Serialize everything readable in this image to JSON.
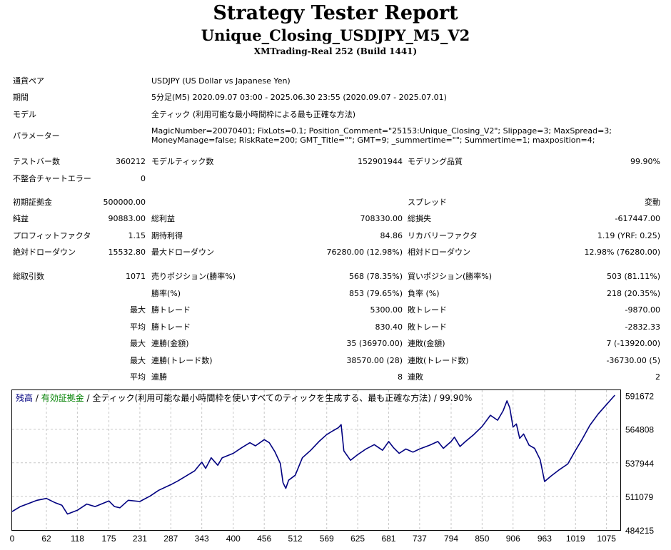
{
  "header": {
    "title": "Strategy Tester Report",
    "ea_name": "Unique_Closing_USDJPY_M5_V2",
    "server": "XMTrading-Real 252 (Build 1441)"
  },
  "info": {
    "symbol_label": "通貨ペア",
    "symbol_value": "USDJPY (US Dollar vs Japanese Yen)",
    "period_label": "期間",
    "period_value": "5分足(M5) 2020.09.07 03:00 - 2025.06.30 23:55 (2020.09.07 - 2025.07.01)",
    "model_label": "モデル",
    "model_value": "全ティック (利用可能な最小時間枠による最も正確な方法)",
    "params_label": "パラメーター",
    "params_line1": "MagicNumber=20070401; FixLots=0.1; Position_Comment=\"25153:Unique_Closing_V2\"; Slippage=3; MaxSpread=3;",
    "params_line2": "MoneyManage=false; RiskRate=200; GMT_Title=\"\"; GMT=9; _summertime=\"\"; Summertime=1; maxposition=4;"
  },
  "stats": {
    "bars_label": "テストバー数",
    "bars_value": "360212",
    "ticks_label": "モデルティック数",
    "ticks_value": "152901944",
    "quality_label": "モデリング品質",
    "quality_value": "99.90%",
    "mismatch_label": "不整合チャートエラー",
    "mismatch_value": "0",
    "deposit_label": "初期証拠金",
    "deposit_value": "500000.00",
    "spread_label": "スプレッド",
    "spread_value": "変動",
    "net_label": "純益",
    "net_value": "90883.00",
    "gross_profit_label": "総利益",
    "gross_profit_value": "708330.00",
    "gross_loss_label": "総損失",
    "gross_loss_value": "-617447.00",
    "pf_label": "プロフィットファクタ",
    "pf_value": "1.15",
    "payoff_label": "期待利得",
    "payoff_value": "84.86",
    "rf_label": "リカバリーファクタ",
    "rf_value": "1.19 (YRF: 0.25)",
    "abs_dd_label": "絶対ドローダウン",
    "abs_dd_value": "15532.80",
    "max_dd_label": "最大ドローダウン",
    "max_dd_value": "76280.00 (12.98%)",
    "rel_dd_label": "相対ドローダウン",
    "rel_dd_value": "12.98% (76280.00)",
    "total_label": "総取引数",
    "total_value": "1071",
    "short_label": "売りポジション(勝率%)",
    "short_value": "568 (78.35%)",
    "long_label": "買いポジション(勝率%)",
    "long_value": "503 (81.11%)",
    "win_label": "勝率(%)",
    "win_value": "853 (79.65%)",
    "loss_label": "負率 (%)",
    "loss_value": "218 (20.35%)",
    "largest_label": "最大",
    "largest_win_label": "勝トレード",
    "largest_win_value": "5300.00",
    "largest_loss_label": "敗トレード",
    "largest_loss_value": "-9870.00",
    "avg_label": "平均",
    "avg_win_label": "勝トレード",
    "avg_win_value": "830.40",
    "avg_loss_label": "敗トレード",
    "avg_loss_value": "-2832.33",
    "max1_label": "最大",
    "cons_wins_label": "連勝(金額)",
    "cons_wins_value": "35 (36970.00)",
    "cons_losses_label": "連敗(金額)",
    "cons_losses_value": "7 (-13920.00)",
    "max2_label": "最大",
    "cons_profit_label": "連勝(トレード数)",
    "cons_profit_value": "38570.00 (28)",
    "cons_loss_label": "連敗(トレード数)",
    "cons_loss_value": "-36730.00 (5)",
    "avg2_label": "平均",
    "avg_cons_wins_label": "連勝",
    "avg_cons_wins_value": "8",
    "avg_cons_losses_label": "連敗",
    "avg_cons_losses_value": "2"
  },
  "legend": {
    "balance": "残高",
    "sep1": " / ",
    "equity": "有効証拠金",
    "sep2": " / ",
    "rest": "全ティック(利用可能な最小時間枠を使いすべてのティックを生成する、最も正確な方法) / 99.90%"
  },
  "colors": {
    "balance": "#000080",
    "equity": "#008000",
    "grid": "#c8c8c8"
  },
  "chart_data": {
    "type": "line",
    "x_ticks": [
      "0",
      "62",
      "118",
      "175",
      "231",
      "287",
      "343",
      "400",
      "456",
      "512",
      "569",
      "625",
      "681",
      "737",
      "794",
      "850",
      "906",
      "963",
      "1019",
      "1075"
    ],
    "y_ticks": [
      "591672",
      "564808",
      "537944",
      "511079",
      "484215"
    ],
    "xlim": [
      0,
      1100
    ],
    "ylim": [
      484215,
      596000
    ],
    "series": [
      {
        "name": "残高",
        "x": [
          0,
          15,
          30,
          45,
          62,
          78,
          90,
          100,
          118,
          135,
          150,
          175,
          185,
          195,
          210,
          231,
          250,
          265,
          287,
          300,
          315,
          330,
          343,
          350,
          360,
          372,
          380,
          400,
          415,
          430,
          440,
          456,
          465,
          475,
          485,
          490,
          495,
          500,
          512,
          525,
          540,
          555,
          569,
          580,
          590,
          595,
          600,
          612,
          625,
          640,
          655,
          670,
          681,
          690,
          700,
          712,
          725,
          737,
          755,
          770,
          780,
          794,
          800,
          810,
          820,
          835,
          850,
          865,
          878,
          888,
          895,
          900,
          906,
          912,
          918,
          925,
          935,
          945,
          955,
          963,
          975,
          990,
          1005,
          1019,
          1030,
          1045,
          1060,
          1075,
          1090
        ],
        "y": [
          499000,
          503000,
          505500,
          508000,
          509500,
          506000,
          504000,
          497000,
          500000,
          505000,
          503000,
          507500,
          503000,
          502000,
          508000,
          507000,
          511500,
          516000,
          520500,
          523500,
          527500,
          531500,
          538500,
          533500,
          542000,
          536000,
          542000,
          545500,
          550000,
          554000,
          551500,
          556500,
          554000,
          547000,
          537500,
          522000,
          517500,
          524000,
          528000,
          542000,
          548000,
          555000,
          560500,
          563500,
          566000,
          568500,
          547500,
          540000,
          544500,
          549000,
          552500,
          548000,
          555000,
          550000,
          545500,
          549000,
          546500,
          549000,
          552000,
          555000,
          549500,
          555000,
          558500,
          551000,
          555000,
          560500,
          567000,
          576000,
          572000,
          579500,
          587500,
          582000,
          566500,
          569000,
          557500,
          561000,
          552000,
          549500,
          540500,
          523000,
          527500,
          532500,
          537000,
          548000,
          556000,
          568000,
          577000,
          584500,
          592000
        ]
      }
    ]
  }
}
